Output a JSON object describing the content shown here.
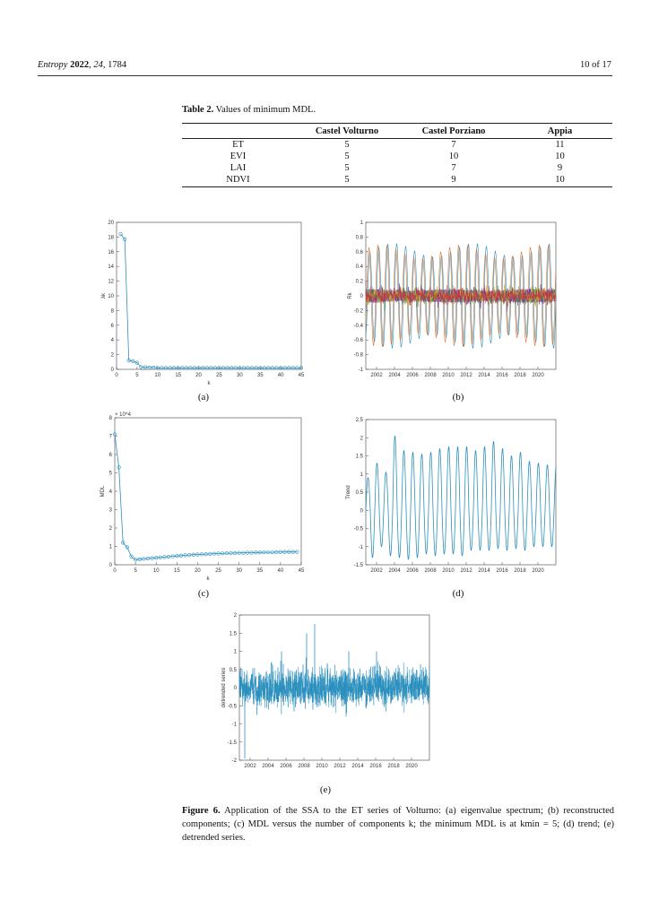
{
  "header": {
    "journal": "Entropy",
    "year": "2022",
    "volume": "24",
    "article": "1784",
    "page": "10 of 17"
  },
  "table": {
    "label": "Table 2.",
    "title": "Values of minimum MDL.",
    "columns": [
      "",
      "Castel Volturno",
      "Castel Porziano",
      "Appia"
    ],
    "rows": [
      [
        "ET",
        "5",
        "7",
        "11"
      ],
      [
        "EVI",
        "5",
        "10",
        "10"
      ],
      [
        "LAI",
        "5",
        "7",
        "9"
      ],
      [
        "NDVI",
        "5",
        "9",
        "10"
      ]
    ]
  },
  "panels": {
    "a": "(a)",
    "b": "(b)",
    "c": "(c)",
    "d": "(d)",
    "e": "(e)"
  },
  "figure_caption": {
    "label": "Figure 6.",
    "text": "Application of the SSA to the ET series of Volturno: (a) eigenvalue spectrum; (b) reconstructed components; (c) MDL versus the number of components k; the minimum MDL is at kmin = 5; (d) trend; (e) detrended series."
  },
  "colors": {
    "line": "#2a8fbd",
    "marker": "#2a8fbd"
  },
  "chart_data": [
    {
      "id": "a",
      "type": "line",
      "xlabel": "k",
      "ylabel": "λk",
      "xlim": [
        0,
        45
      ],
      "ylim": [
        0,
        20
      ],
      "xticks": [
        "0",
        "5",
        "10",
        "15",
        "20",
        "25",
        "30",
        "35",
        "40",
        "45"
      ],
      "yticks": [
        "0",
        "2",
        "4",
        "6",
        "8",
        "10",
        "12",
        "14",
        "16",
        "18",
        "20"
      ],
      "x": [
        1,
        2,
        3,
        4,
        5,
        6,
        7,
        8,
        9,
        10,
        11,
        12,
        13,
        14,
        15,
        16,
        17,
        18,
        19,
        20,
        21,
        22,
        23,
        24,
        25,
        26,
        27,
        28,
        29,
        30,
        31,
        32,
        33,
        34,
        35,
        36,
        37,
        38,
        39,
        40,
        41,
        42,
        43,
        44,
        45
      ],
      "values": [
        18.4,
        17.7,
        1.2,
        1.1,
        0.9,
        0.3,
        0.3,
        0.25,
        0.25,
        0.2,
        0.2,
        0.2,
        0.2,
        0.2,
        0.2,
        0.2,
        0.2,
        0.2,
        0.2,
        0.2,
        0.2,
        0.2,
        0.2,
        0.2,
        0.2,
        0.2,
        0.2,
        0.2,
        0.2,
        0.2,
        0.2,
        0.2,
        0.2,
        0.2,
        0.2,
        0.2,
        0.2,
        0.2,
        0.2,
        0.2,
        0.2,
        0.2,
        0.2,
        0.2,
        0.2
      ]
    },
    {
      "id": "b",
      "type": "line",
      "ylabel": "Rk",
      "ylim": [
        -1,
        1
      ],
      "yticks": [
        "-1",
        "-0.8",
        "-0.6",
        "-0.4",
        "-0.2",
        "0",
        "0.2",
        "0.4",
        "0.6",
        "0.8",
        "1"
      ],
      "xticks": [
        "2002",
        "2004",
        "2006",
        "2008",
        "2010",
        "2012",
        "2014",
        "2016",
        "2018",
        "2020"
      ],
      "series": [
        {
          "amplitude": 0.62,
          "cycles_per_year": 1
        },
        {
          "amplitude": 0.6,
          "cycles_per_year": 1,
          "phase": 0.6
        },
        {
          "amplitude": 0.08,
          "cycles_per_year": 8
        }
      ]
    },
    {
      "id": "c",
      "type": "line",
      "xlabel": "k",
      "ylabel": "MDL",
      "scale_note": "× 10^4",
      "xlim": [
        0,
        45
      ],
      "ylim": [
        0,
        8
      ],
      "xticks": [
        "0",
        "5",
        "10",
        "15",
        "20",
        "25",
        "30",
        "35",
        "40",
        "45"
      ],
      "yticks": [
        "0",
        "1",
        "2",
        "3",
        "4",
        "5",
        "6",
        "7",
        "8"
      ],
      "x": [
        0,
        1,
        2,
        3,
        4,
        5,
        6,
        7,
        8,
        9,
        10,
        11,
        12,
        13,
        14,
        15,
        16,
        17,
        18,
        19,
        20,
        21,
        22,
        23,
        24,
        25,
        26,
        27,
        28,
        29,
        30,
        31,
        32,
        33,
        34,
        35,
        36,
        37,
        38,
        39,
        40,
        41,
        42,
        43,
        44
      ],
      "values": [
        7.1,
        5.3,
        1.2,
        0.95,
        0.45,
        0.28,
        0.3,
        0.32,
        0.34,
        0.36,
        0.38,
        0.4,
        0.42,
        0.44,
        0.46,
        0.48,
        0.5,
        0.52,
        0.53,
        0.55,
        0.56,
        0.57,
        0.58,
        0.59,
        0.6,
        0.61,
        0.62,
        0.63,
        0.63,
        0.64,
        0.65,
        0.65,
        0.66,
        0.66,
        0.67,
        0.67,
        0.68,
        0.68,
        0.68,
        0.69,
        0.69,
        0.7,
        0.7,
        0.7,
        0.7
      ]
    },
    {
      "id": "d",
      "type": "line",
      "ylabel": "Trend",
      "ylim": [
        -1.5,
        2.5
      ],
      "yticks": [
        "-1.5",
        "-1",
        "-0.5",
        "0",
        "0.5",
        "1",
        "1.5",
        "2",
        "2.5"
      ],
      "xticks": [
        "2002",
        "2004",
        "2006",
        "2008",
        "2010",
        "2012",
        "2014",
        "2016",
        "2018",
        "2020"
      ],
      "peaks": [
        0.9,
        1.3,
        1.05,
        2.05,
        1.65,
        1.6,
        1.55,
        1.6,
        1.7,
        1.75,
        1.75,
        1.75,
        1.65,
        1.75,
        1.9,
        1.7,
        1.5,
        1.6,
        1.35,
        1.3,
        1.25
      ],
      "troughs": [
        -1.3,
        -1.0,
        -1.25,
        -1.3,
        -1.35,
        -1.3,
        -1.2,
        -1.25,
        -1.2,
        -1.2,
        -1.25,
        -1.1,
        -1.1,
        -1.1,
        -1.05,
        -1.1,
        -1.05,
        -1.1,
        -1.0,
        -1.0,
        -1.0
      ]
    },
    {
      "id": "e",
      "type": "line",
      "ylabel": "detrended series",
      "ylim": [
        -2,
        2
      ],
      "yticks": [
        "-2",
        "-1.5",
        "-1",
        "-0.5",
        "0",
        "0.5",
        "1",
        "1.5",
        "2"
      ],
      "xticks": [
        "2002",
        "2004",
        "2006",
        "2008",
        "2010",
        "2012",
        "2014",
        "2016",
        "2018",
        "2020"
      ],
      "noise_sd": 0.25,
      "spikes": [
        [
          2005.5,
          1.0
        ],
        [
          2008.3,
          1.5
        ],
        [
          2009.2,
          1.75
        ],
        [
          2013.0,
          1.0
        ],
        [
          2016.1,
          1.0
        ],
        [
          2001.4,
          -1.95
        ]
      ]
    }
  ]
}
